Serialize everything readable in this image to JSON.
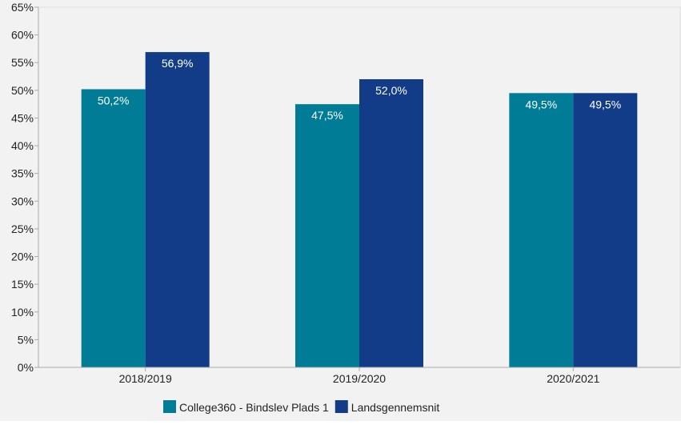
{
  "chart_data": {
    "type": "bar",
    "categories": [
      "2018/2019",
      "2019/2020",
      "2020/2021"
    ],
    "series": [
      {
        "name": "College360 - Bindslev Plads 1",
        "values": [
          50.2,
          47.5,
          49.5
        ],
        "labels": [
          "50,2%",
          "47,5%",
          "49,5%"
        ],
        "color": "#007c96"
      },
      {
        "name": "Landsgennemsnit",
        "values": [
          56.9,
          52.0,
          49.5
        ],
        "labels": [
          "56,9%",
          "52,0%",
          "49,5%"
        ],
        "color": "#123c87"
      }
    ],
    "y_ticks": [
      0,
      5,
      10,
      15,
      20,
      25,
      30,
      35,
      40,
      45,
      50,
      55,
      60,
      65
    ],
    "y_tick_labels": [
      "0%",
      "5%",
      "10%",
      "15%",
      "20%",
      "25%",
      "30%",
      "35%",
      "40%",
      "45%",
      "50%",
      "55%",
      "60%",
      "65%"
    ],
    "ylim": [
      0,
      65
    ],
    "grid": false,
    "legend_position": "bottom-center",
    "plot_background": "#f2f2f2",
    "axis_color": "#aaaaaa"
  }
}
